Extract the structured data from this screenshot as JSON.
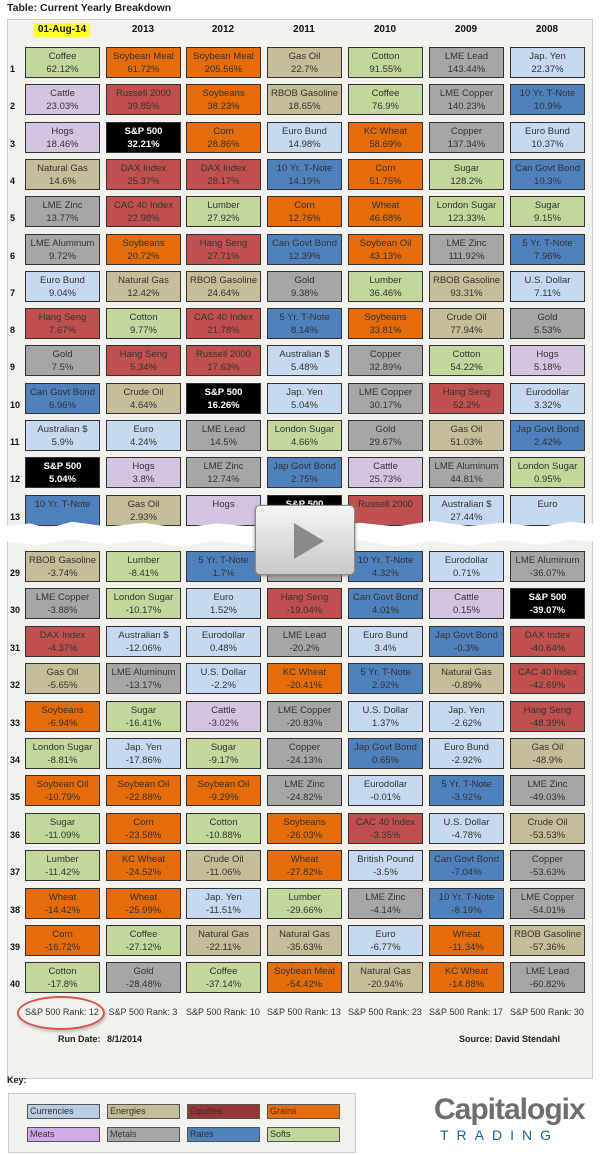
{
  "title": "Table: Current Yearly Breakdown",
  "columns": [
    "01-Aug-14",
    "2013",
    "2012",
    "2011",
    "2010",
    "2009",
    "2008"
  ],
  "colors": {
    "C": "#c6d9f0",
    "E": "#c4bd97",
    "Q": "#c0504d",
    "G": "#e46c0a",
    "M": "#d3c5e0",
    "T": "#a6a6a6",
    "R": "#4f81bd",
    "S": "#c3d69b",
    "SP": "#000000"
  },
  "rows_top": [
    {
      "rank": "1",
      "cells": [
        [
          "Coffee",
          "62.12%",
          "S"
        ],
        [
          "Soybean Meal",
          "61.72%",
          "G"
        ],
        [
          "Soybean Meal",
          "205.56%",
          "G"
        ],
        [
          "Gas Oil",
          "22.7%",
          "E"
        ],
        [
          "Cotton",
          "91.55%",
          "S"
        ],
        [
          "LME Lead",
          "143.44%",
          "T"
        ],
        [
          "Jap. Yen",
          "22.37%",
          "C"
        ]
      ]
    },
    {
      "rank": "2",
      "cells": [
        [
          "Cattle",
          "23.03%",
          "M"
        ],
        [
          "Russell 2000",
          "39.85%",
          "Q"
        ],
        [
          "Soybeans",
          "38.23%",
          "G"
        ],
        [
          "RBOB Gasoline",
          "18.65%",
          "E"
        ],
        [
          "Coffee",
          "76.9%",
          "S"
        ],
        [
          "LME Copper",
          "140.23%",
          "T"
        ],
        [
          "10 Yr. T-Note",
          "10.9%",
          "R"
        ]
      ]
    },
    {
      "rank": "3",
      "cells": [
        [
          "Hogs",
          "18.46%",
          "M"
        ],
        [
          "S&P 500",
          "32.21%",
          "SP"
        ],
        [
          "Corn",
          "28.86%",
          "G"
        ],
        [
          "Euro Bund",
          "14.98%",
          "C"
        ],
        [
          "KC Wheat",
          "58.69%",
          "G"
        ],
        [
          "Copper",
          "137.34%",
          "T"
        ],
        [
          "Euro Bund",
          "10.37%",
          "C"
        ]
      ]
    },
    {
      "rank": "4",
      "cells": [
        [
          "Natural Gas",
          "14.6%",
          "E"
        ],
        [
          "DAX Index",
          "25.37%",
          "Q"
        ],
        [
          "DAX Index",
          "28.17%",
          "Q"
        ],
        [
          "10 Yr. T-Note",
          "14.19%",
          "R"
        ],
        [
          "Corn",
          "51.75%",
          "G"
        ],
        [
          "Sugar",
          "128.2%",
          "S"
        ],
        [
          "Can Govt Bond",
          "10.3%",
          "R"
        ]
      ]
    },
    {
      "rank": "5",
      "cells": [
        [
          "LME Zinc",
          "13.77%",
          "T"
        ],
        [
          "CAC 40 Index",
          "22.98%",
          "Q"
        ],
        [
          "Lumber",
          "27.92%",
          "S"
        ],
        [
          "Corn",
          "12.76%",
          "G"
        ],
        [
          "Wheat",
          "46.68%",
          "G"
        ],
        [
          "London Sugar",
          "123.33%",
          "S"
        ],
        [
          "Sugar",
          "9.15%",
          "S"
        ]
      ]
    },
    {
      "rank": "6",
      "cells": [
        [
          "LME Aluminum",
          "9.72%",
          "T"
        ],
        [
          "Soybeans",
          "20.72%",
          "G"
        ],
        [
          "Hang Seng",
          "27.71%",
          "Q"
        ],
        [
          "Can Govt Bond",
          "12.39%",
          "R"
        ],
        [
          "Soybean Oil",
          "43.13%",
          "G"
        ],
        [
          "LME Zinc",
          "111.92%",
          "T"
        ],
        [
          "5 Yr. T-Note",
          "7.96%",
          "R"
        ]
      ]
    },
    {
      "rank": "7",
      "cells": [
        [
          "Euro Bund",
          "9.04%",
          "C"
        ],
        [
          "Natural Gas",
          "12.42%",
          "E"
        ],
        [
          "RBOB Gasoline",
          "24.64%",
          "E"
        ],
        [
          "Gold",
          "9.38%",
          "T"
        ],
        [
          "Lumber",
          "36.46%",
          "S"
        ],
        [
          "RBOB Gasoline",
          "93.31%",
          "E"
        ],
        [
          "U.S. Dollar",
          "7.11%",
          "C"
        ]
      ]
    },
    {
      "rank": "8",
      "cells": [
        [
          "Hang Seng",
          "7.67%",
          "Q"
        ],
        [
          "Cotton",
          "9.77%",
          "S"
        ],
        [
          "CAC 40 Index",
          "21.78%",
          "Q"
        ],
        [
          "5 Yr. T-Note",
          "8.14%",
          "R"
        ],
        [
          "Soybeans",
          "33.81%",
          "G"
        ],
        [
          "Crude Oil",
          "77.94%",
          "E"
        ],
        [
          "Gold",
          "5.53%",
          "T"
        ]
      ]
    },
    {
      "rank": "9",
      "cells": [
        [
          "Gold",
          "7.5%",
          "T"
        ],
        [
          "Hang Seng",
          "5.34%",
          "Q"
        ],
        [
          "Russell 2000",
          "17.63%",
          "Q"
        ],
        [
          "Australian $",
          "5.48%",
          "C"
        ],
        [
          "Copper",
          "32.89%",
          "T"
        ],
        [
          "Cotton",
          "54.22%",
          "S"
        ],
        [
          "Hogs",
          "5.18%",
          "M"
        ]
      ]
    },
    {
      "rank": "10",
      "cells": [
        [
          "Can Govt Bond",
          "6.96%",
          "R"
        ],
        [
          "Crude Oil",
          "4.64%",
          "E"
        ],
        [
          "S&P 500",
          "16.26%",
          "SP"
        ],
        [
          "Jap. Yen",
          "5.04%",
          "C"
        ],
        [
          "LME Copper",
          "30.17%",
          "T"
        ],
        [
          "Hang Seng",
          "52.2%",
          "Q"
        ],
        [
          "Eurodollar",
          "3.32%",
          "C"
        ]
      ]
    },
    {
      "rank": "11",
      "cells": [
        [
          "Australian $",
          "5.9%",
          "C"
        ],
        [
          "Euro",
          "4.24%",
          "C"
        ],
        [
          "LME Lead",
          "14.5%",
          "T"
        ],
        [
          "London Sugar",
          "4.66%",
          "S"
        ],
        [
          "Gold",
          "29.67%",
          "T"
        ],
        [
          "Gas Oil",
          "51.03%",
          "E"
        ],
        [
          "Jap Govt Bond",
          "2.42%",
          "R"
        ]
      ]
    },
    {
      "rank": "12",
      "cells": [
        [
          "S&P 500",
          "5.04%",
          "SP"
        ],
        [
          "Hogs",
          "3.8%",
          "M"
        ],
        [
          "LME Zinc",
          "12.74%",
          "T"
        ],
        [
          "Jap Govt Bond",
          "2.75%",
          "R"
        ],
        [
          "Cattle",
          "25.73%",
          "M"
        ],
        [
          "LME Aluminum",
          "44.81%",
          "T"
        ],
        [
          "London Sugar",
          "0.95%",
          "S"
        ]
      ]
    },
    {
      "rank": "13",
      "cells": [
        [
          "10 Yr. T-Note",
          "",
          "R"
        ],
        [
          "Gas Oil",
          "2.93%",
          "E"
        ],
        [
          "Hogs",
          "",
          "M"
        ],
        [
          "S&P 500",
          "",
          "SP"
        ],
        [
          "Russell 2000",
          "",
          "Q"
        ],
        [
          "Australian $",
          "27.44%",
          "C"
        ],
        [
          "Euro",
          "",
          "C"
        ]
      ]
    }
  ],
  "rows_bottom": [
    {
      "rank": "29",
      "cells": [
        [
          "RBOB Gasoline",
          "-3.74%",
          "E"
        ],
        [
          "Lumber",
          "-8.41%",
          "S"
        ],
        [
          "5 Yr. T-Note",
          "1.7%",
          "R"
        ],
        [
          "",
          "-18.22%",
          "T"
        ],
        [
          "10 Yr. T-Note",
          "4.32%",
          "R"
        ],
        [
          "Eurodollar",
          "0.71%",
          "C"
        ],
        [
          "LME Aluminum",
          "-36.07%",
          "T"
        ]
      ]
    },
    {
      "rank": "30",
      "cells": [
        [
          "LME Copper",
          "-3.88%",
          "T"
        ],
        [
          "London Sugar",
          "-10.17%",
          "S"
        ],
        [
          "Euro",
          "1.52%",
          "C"
        ],
        [
          "Hang Seng",
          "-19.04%",
          "Q"
        ],
        [
          "Can Govt Bond",
          "4.01%",
          "R"
        ],
        [
          "Cattle",
          "0.15%",
          "M"
        ],
        [
          "S&P 500",
          "-39.07%",
          "SP"
        ]
      ]
    },
    {
      "rank": "31",
      "cells": [
        [
          "DAX Index",
          "-4.37%",
          "Q"
        ],
        [
          "Australian $",
          "-12.06%",
          "C"
        ],
        [
          "Eurodollar",
          "0.48%",
          "C"
        ],
        [
          "LME Lead",
          "-20.2%",
          "T"
        ],
        [
          "Euro Bund",
          "3.4%",
          "C"
        ],
        [
          "Jap Govt Bond",
          "-0.3%",
          "R"
        ],
        [
          "DAX Index",
          "-40.64%",
          "Q"
        ]
      ]
    },
    {
      "rank": "32",
      "cells": [
        [
          "Gas Oil",
          "-5.65%",
          "E"
        ],
        [
          "LME Aluminum",
          "-13.17%",
          "T"
        ],
        [
          "U.S. Dollar",
          "-2.2%",
          "C"
        ],
        [
          "KC Wheat",
          "-20.41%",
          "G"
        ],
        [
          "5 Yr. T-Note",
          "2.92%",
          "R"
        ],
        [
          "Natural Gas",
          "-0.89%",
          "E"
        ],
        [
          "CAC 40 Index",
          "-42.69%",
          "Q"
        ]
      ]
    },
    {
      "rank": "33",
      "cells": [
        [
          "Soybeans",
          "-6.94%",
          "G"
        ],
        [
          "Sugar",
          "-16.41%",
          "S"
        ],
        [
          "Cattle",
          "-3.02%",
          "M"
        ],
        [
          "LME Copper",
          "-20.83%",
          "T"
        ],
        [
          "U.S. Dollar",
          "1.37%",
          "C"
        ],
        [
          "Jap. Yen",
          "-2.62%",
          "C"
        ],
        [
          "Hang Seng",
          "-48.39%",
          "Q"
        ]
      ]
    },
    {
      "rank": "34",
      "cells": [
        [
          "London Sugar",
          "-8.81%",
          "S"
        ],
        [
          "Jap. Yen",
          "-17.86%",
          "C"
        ],
        [
          "Sugar",
          "-9.17%",
          "S"
        ],
        [
          "Copper",
          "-24.13%",
          "T"
        ],
        [
          "Jap Govt Bond",
          "0.65%",
          "R"
        ],
        [
          "Euro Bund",
          "-2.92%",
          "C"
        ],
        [
          "Gas Oil",
          "-48.9%",
          "E"
        ]
      ]
    },
    {
      "rank": "35",
      "cells": [
        [
          "Soybean Oil",
          "-10.79%",
          "G"
        ],
        [
          "Soybean Oil",
          "-22.88%",
          "G"
        ],
        [
          "Soybean Oil",
          "-9.29%",
          "G"
        ],
        [
          "LME Zinc",
          "-24.82%",
          "T"
        ],
        [
          "Eurodollar",
          "-0.01%",
          "C"
        ],
        [
          "5 Yr. T-Note",
          "-3.92%",
          "R"
        ],
        [
          "LME Zinc",
          "-49.03%",
          "T"
        ]
      ]
    },
    {
      "rank": "36",
      "cells": [
        [
          "Sugar",
          "-11.09%",
          "S"
        ],
        [
          "Corn",
          "-23.58%",
          "G"
        ],
        [
          "Cotton",
          "-10.88%",
          "S"
        ],
        [
          "Soybeans",
          "-26.03%",
          "G"
        ],
        [
          "CAC 40 Index",
          "-3.35%",
          "Q"
        ],
        [
          "U.S. Dollar",
          "-4.78%",
          "C"
        ],
        [
          "Crude Oil",
          "-53.53%",
          "E"
        ]
      ]
    },
    {
      "rank": "37",
      "cells": [
        [
          "Lumber",
          "-11.42%",
          "S"
        ],
        [
          "KC Wheat",
          "-24.52%",
          "G"
        ],
        [
          "Crude Oil",
          "-11.06%",
          "E"
        ],
        [
          "Wheat",
          "-27.82%",
          "G"
        ],
        [
          "British Pound",
          "-3.5%",
          "C"
        ],
        [
          "Can Govt Bond",
          "-7.04%",
          "R"
        ],
        [
          "Copper",
          "-53.63%",
          "T"
        ]
      ]
    },
    {
      "rank": "38",
      "cells": [
        [
          "Wheat",
          "-14.42%",
          "G"
        ],
        [
          "Wheat",
          "-25.99%",
          "G"
        ],
        [
          "Jap. Yen",
          "-11.51%",
          "C"
        ],
        [
          "Lumber",
          "-29.66%",
          "S"
        ],
        [
          "LME Zinc",
          "-4.14%",
          "T"
        ],
        [
          "10 Yr. T-Note",
          "-8.19%",
          "R"
        ],
        [
          "LME Copper",
          "-54.01%",
          "T"
        ]
      ]
    },
    {
      "rank": "39",
      "cells": [
        [
          "Corn",
          "-16.72%",
          "G"
        ],
        [
          "Coffee",
          "-27.12%",
          "S"
        ],
        [
          "Natural Gas",
          "-22.11%",
          "E"
        ],
        [
          "Natural Gas",
          "-35.63%",
          "E"
        ],
        [
          "Euro",
          "-6.77%",
          "C"
        ],
        [
          "Wheat",
          "-11.34%",
          "G"
        ],
        [
          "RBOB Gasoline",
          "-57.36%",
          "E"
        ]
      ]
    },
    {
      "rank": "40",
      "cells": [
        [
          "Cotton",
          "-17.8%",
          "S"
        ],
        [
          "Gold",
          "-28.48%",
          "T"
        ],
        [
          "Coffee",
          "-37.14%",
          "S"
        ],
        [
          "Soybean Meal",
          "-54.42%",
          "G"
        ],
        [
          "Natural Gas",
          "-20.94%",
          "E"
        ],
        [
          "KC Wheat",
          "-14.88%",
          "G"
        ],
        [
          "LME Lead",
          "-60.82%",
          "T"
        ]
      ]
    }
  ],
  "ranks": [
    "S&P 500 Rank: 12",
    "S&P 500 Rank: 3",
    "S&P 500 Rank: 10",
    "S&P 500 Rank: 13",
    "S&P 500 Rank: 23",
    "S&P 500 Rank: 17",
    "S&P 500 Rank: 30"
  ],
  "footer": {
    "run_date_label": "Run Date:",
    "run_date": "8/1/2014",
    "source": "Source: David Stendahl"
  },
  "key": {
    "label": "Key:",
    "items": [
      [
        "Currencies",
        "#b8cce4"
      ],
      [
        "Energies",
        "#c4bd97"
      ],
      [
        "Equities",
        "#953735"
      ],
      [
        "Grains",
        "#e46c0a"
      ],
      [
        "Meats",
        "#d0a9e6"
      ],
      [
        "Metals",
        "#a6a6a6"
      ],
      [
        "Rates",
        "#4f81bd"
      ],
      [
        "Softs",
        "#c3d69b"
      ]
    ]
  },
  "logo": {
    "name": "Capitalogix",
    "sub": "TRADING"
  },
  "chart_data": {
    "type": "table",
    "title": "Table: Current Yearly Breakdown",
    "note": "Rows 1-13 and 29-40 visible; cells are [asset, yearly return, category]"
  }
}
